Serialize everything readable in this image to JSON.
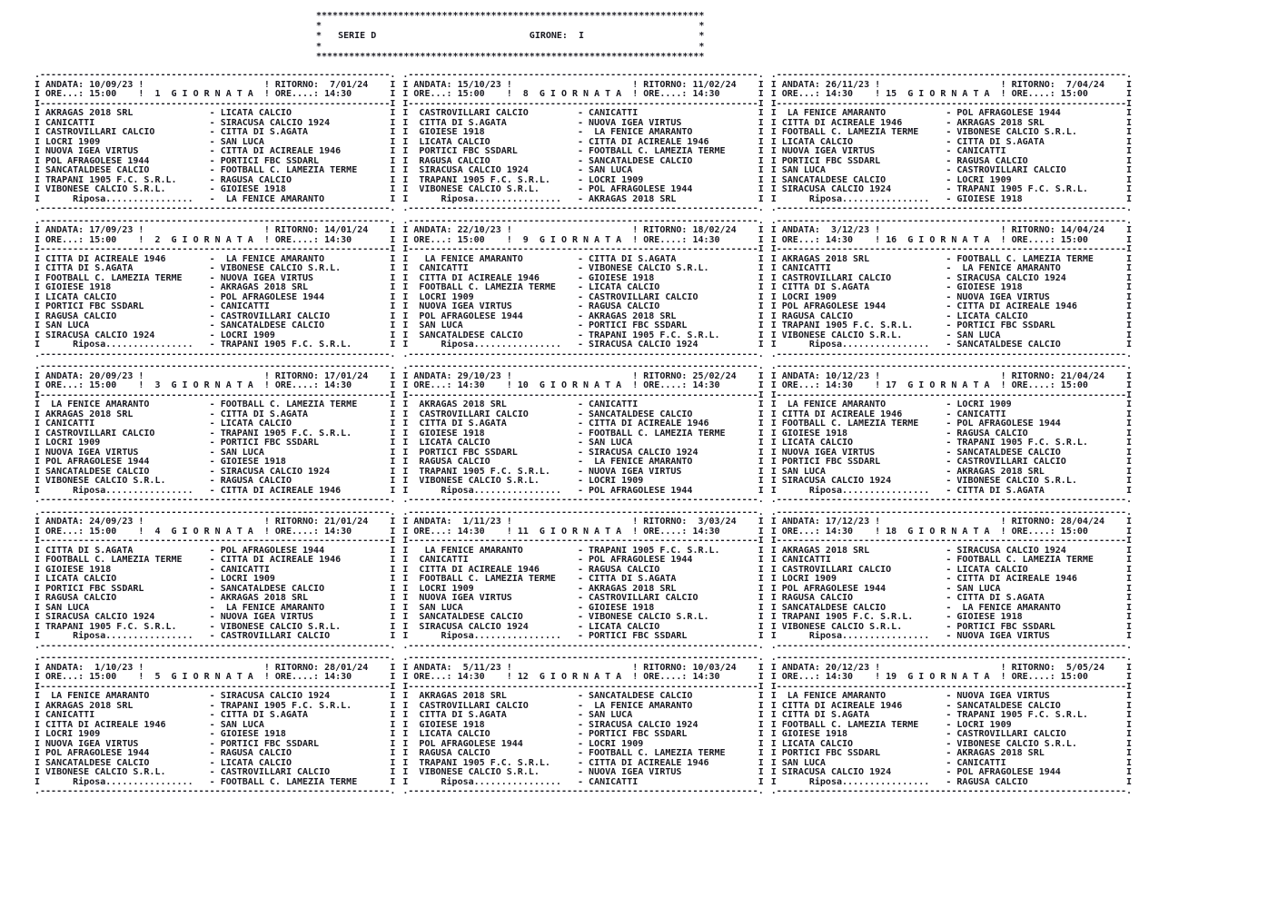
{
  "header": {
    "title": "SERIE D",
    "girone_label": "GIRONE:",
    "girone_value": "I"
  },
  "labels": {
    "andata": "ANDATA:",
    "ore_andata": "ORE...:",
    "ritorno": "RITORNO:",
    "ore_ritorno": "ORE....:",
    "giornata": "G I O R N A T A",
    "riposa": "Riposa"
  },
  "giornate": [
    {
      "number": "1",
      "andata": {
        "date": "10/09/23",
        "ore": "15:00"
      },
      "ritorno": {
        "date": "7/01/24",
        "ore": "14:30"
      },
      "matches": [
        [
          "AKRAGAS 2018 SRL",
          "LICATA CALCIO"
        ],
        [
          "CANICATTI",
          "SIRACUSA CALCIO 1924"
        ],
        [
          "CASTROVILLARI CALCIO",
          "CITTA DI S.AGATA"
        ],
        [
          "LOCRI 1909",
          "SAN LUCA"
        ],
        [
          "NUOVA IGEA VIRTUS",
          "CITTA DI ACIREALE 1946"
        ],
        [
          "POL AFRAGOLESE 1944",
          "PORTICI FBC SSDARL"
        ],
        [
          "SANCATALDESE CALCIO",
          "FOOTBALL C. LAMEZIA TERME"
        ],
        [
          "TRAPANI 1905 F.C. S.R.L.",
          "RAGUSA CALCIO"
        ],
        [
          "VIBONESE CALCIO S.R.L.",
          "GIOIESE 1918"
        ]
      ],
      "riposa": " LA FENICE AMARANTO"
    },
    {
      "number": "2",
      "andata": {
        "date": "17/09/23",
        "ore": "15:00"
      },
      "ritorno": {
        "date": "14/01/24",
        "ore": "14:30"
      },
      "matches": [
        [
          "CITTA DI ACIREALE 1946",
          " LA FENICE AMARANTO"
        ],
        [
          "CITTA DI S.AGATA",
          "VIBONESE CALCIO S.R.L."
        ],
        [
          "FOOTBALL C. LAMEZIA TERME",
          "NUOVA IGEA VIRTUS"
        ],
        [
          "GIOIESE 1918",
          "AKRAGAS 2018 SRL"
        ],
        [
          "LICATA CALCIO",
          "POL AFRAGOLESE 1944"
        ],
        [
          "PORTICI FBC SSDARL",
          "CANICATTI"
        ],
        [
          "RAGUSA CALCIO",
          "CASTROVILLARI CALCIO"
        ],
        [
          "SAN LUCA",
          "SANCATALDESE CALCIO"
        ],
        [
          "SIRACUSA CALCIO 1924",
          "LOCRI 1909"
        ]
      ],
      "riposa": "TRAPANI 1905 F.C. S.R.L."
    },
    {
      "number": "3",
      "andata": {
        "date": "20/09/23",
        "ore": "15:00"
      },
      "ritorno": {
        "date": "17/01/24",
        "ore": "14:30"
      },
      "matches": [
        [
          " LA FENICE AMARANTO",
          "FOOTBALL C. LAMEZIA TERME"
        ],
        [
          "AKRAGAS 2018 SRL",
          "CITTA DI S.AGATA"
        ],
        [
          "CANICATTI",
          "LICATA CALCIO"
        ],
        [
          "CASTROVILLARI CALCIO",
          "TRAPANI 1905 F.C. S.R.L."
        ],
        [
          "LOCRI 1909",
          "PORTICI FBC SSDARL"
        ],
        [
          "NUOVA IGEA VIRTUS",
          "SAN LUCA"
        ],
        [
          "POL AFRAGOLESE 1944",
          "GIOIESE 1918"
        ],
        [
          "SANCATALDESE CALCIO",
          "SIRACUSA CALCIO 1924"
        ],
        [
          "VIBONESE CALCIO S.R.L.",
          "RAGUSA CALCIO"
        ]
      ],
      "riposa": "CITTA DI ACIREALE 1946"
    },
    {
      "number": "4",
      "andata": {
        "date": "24/09/23",
        "ore": "15:00"
      },
      "ritorno": {
        "date": "21/01/24",
        "ore": "14:30"
      },
      "matches": [
        [
          "CITTA DI S.AGATA",
          "POL AFRAGOLESE 1944"
        ],
        [
          "FOOTBALL C. LAMEZIA TERME",
          "CITTA DI ACIREALE 1946"
        ],
        [
          "GIOIESE 1918",
          "CANICATTI"
        ],
        [
          "LICATA CALCIO",
          "LOCRI 1909"
        ],
        [
          "PORTICI FBC SSDARL",
          "SANCATALDESE CALCIO"
        ],
        [
          "RAGUSA CALCIO",
          "AKRAGAS 2018 SRL"
        ],
        [
          "SAN LUCA",
          " LA FENICE AMARANTO"
        ],
        [
          "SIRACUSA CALCIO 1924",
          "NUOVA IGEA VIRTUS"
        ],
        [
          "TRAPANI 1905 F.C. S.R.L.",
          "VIBONESE CALCIO S.R.L."
        ]
      ],
      "riposa": "CASTROVILLARI CALCIO"
    },
    {
      "number": "5",
      "andata": {
        "date": "1/10/23",
        "ore": "15:00"
      },
      "ritorno": {
        "date": "28/01/24",
        "ore": "14:30"
      },
      "matches": [
        [
          " LA FENICE AMARANTO",
          "SIRACUSA CALCIO 1924"
        ],
        [
          "AKRAGAS 2018 SRL",
          "TRAPANI 1905 F.C. S.R.L."
        ],
        [
          "CANICATTI",
          "CITTA DI S.AGATA"
        ],
        [
          "CITTA DI ACIREALE 1946",
          "SAN LUCA"
        ],
        [
          "LOCRI 1909",
          "GIOIESE 1918"
        ],
        [
          "NUOVA IGEA VIRTUS",
          "PORTICI FBC SSDARL"
        ],
        [
          "POL AFRAGOLESE 1944",
          "RAGUSA CALCIO"
        ],
        [
          "SANCATALDESE CALCIO",
          "LICATA CALCIO"
        ],
        [
          "VIBONESE CALCIO S.R.L.",
          "CASTROVILLARI CALCIO"
        ]
      ],
      "riposa": "FOOTBALL C. LAMEZIA TERME"
    },
    {
      "number": "8",
      "andata": {
        "date": "15/10/23",
        "ore": "15:00"
      },
      "ritorno": {
        "date": "11/02/24",
        "ore": "14:30"
      },
      "matches": [
        [
          " CASTROVILLARI CALCIO",
          "CANICATTI"
        ],
        [
          " CITTA DI S.AGATA",
          "NUOVA IGEA VIRTUS"
        ],
        [
          " GIOIESE 1918",
          " LA FENICE AMARANTO"
        ],
        [
          " LICATA CALCIO",
          "CITTA DI ACIREALE 1946"
        ],
        [
          " PORTICI FBC SSDARL",
          "FOOTBALL C. LAMEZIA TERME"
        ],
        [
          " RAGUSA CALCIO",
          "SANCATALDESE CALCIO"
        ],
        [
          " SIRACUSA CALCIO 1924",
          "SAN LUCA"
        ],
        [
          " TRAPANI 1905 F.C. S.R.L.",
          "LOCRI 1909"
        ],
        [
          " VIBONESE CALCIO S.R.L.",
          "POL AFRAGOLESE 1944"
        ]
      ],
      "riposa": "AKRAGAS 2018 SRL"
    },
    {
      "number": "9",
      "andata": {
        "date": "22/10/23",
        "ore": "15:00"
      },
      "ritorno": {
        "date": "18/02/24",
        "ore": "14:30"
      },
      "matches": [
        [
          "  LA FENICE AMARANTO",
          "CITTA DI S.AGATA"
        ],
        [
          " CANICATTI",
          "VIBONESE CALCIO S.R.L."
        ],
        [
          " CITTA DI ACIREALE 1946",
          "GIOIESE 1918"
        ],
        [
          " FOOTBALL C. LAMEZIA TERME",
          "LICATA CALCIO"
        ],
        [
          " LOCRI 1909",
          "CASTROVILLARI CALCIO"
        ],
        [
          " NUOVA IGEA VIRTUS",
          "RAGUSA CALCIO"
        ],
        [
          " POL AFRAGOLESE 1944",
          "AKRAGAS 2018 SRL"
        ],
        [
          " SAN LUCA",
          "PORTICI FBC SSDARL"
        ],
        [
          " SANCATALDESE CALCIO",
          "TRAPANI 1905 F.C. S.R.L."
        ]
      ],
      "riposa": "SIRACUSA CALCIO 1924"
    },
    {
      "number": "10",
      "andata": {
        "date": "29/10/23",
        "ore": "14:30"
      },
      "ritorno": {
        "date": "25/02/24",
        "ore": "14:30"
      },
      "matches": [
        [
          " AKRAGAS 2018 SRL",
          "CANICATTI"
        ],
        [
          " CASTROVILLARI CALCIO",
          "SANCATALDESE CALCIO"
        ],
        [
          " CITTA DI S.AGATA",
          "CITTA DI ACIREALE 1946"
        ],
        [
          " GIOIESE 1918",
          "FOOTBALL C. LAMEZIA TERME"
        ],
        [
          " LICATA CALCIO",
          "SAN LUCA"
        ],
        [
          " PORTICI FBC SSDARL",
          "SIRACUSA CALCIO 1924"
        ],
        [
          " RAGUSA CALCIO",
          " LA FENICE AMARANTO"
        ],
        [
          " TRAPANI 1905 F.C. S.R.L.",
          "NUOVA IGEA VIRTUS"
        ],
        [
          " VIBONESE CALCIO S.R.L.",
          "LOCRI 1909"
        ]
      ],
      "riposa": "POL AFRAGOLESE 1944"
    },
    {
      "number": "11",
      "andata": {
        "date": "1/11/23",
        "ore": "14:30"
      },
      "ritorno": {
        "date": "3/03/24",
        "ore": "14:30"
      },
      "matches": [
        [
          "  LA FENICE AMARANTO",
          "TRAPANI 1905 F.C. S.R.L."
        ],
        [
          " CANICATTI",
          "POL AFRAGOLESE 1944"
        ],
        [
          " CITTA DI ACIREALE 1946",
          "RAGUSA CALCIO"
        ],
        [
          " FOOTBALL C. LAMEZIA TERME",
          "CITTA DI S.AGATA"
        ],
        [
          " LOCRI 1909",
          "AKRAGAS 2018 SRL"
        ],
        [
          " NUOVA IGEA VIRTUS",
          "CASTROVILLARI CALCIO"
        ],
        [
          " SAN LUCA",
          "GIOIESE 1918"
        ],
        [
          " SANCATALDESE CALCIO",
          "VIBONESE CALCIO S.R.L."
        ],
        [
          " SIRACUSA CALCIO 1924",
          "LICATA CALCIO"
        ]
      ],
      "riposa": "PORTICI FBC SSDARL"
    },
    {
      "number": "12",
      "andata": {
        "date": "5/11/23",
        "ore": "14:30"
      },
      "ritorno": {
        "date": "10/03/24",
        "ore": "14:30"
      },
      "matches": [
        [
          " AKRAGAS 2018 SRL",
          "SANCATALDESE CALCIO"
        ],
        [
          " CASTROVILLARI CALCIO",
          " LA FENICE AMARANTO"
        ],
        [
          " CITTA DI S.AGATA",
          "SAN LUCA"
        ],
        [
          " GIOIESE 1918",
          "SIRACUSA CALCIO 1924"
        ],
        [
          " LICATA CALCIO",
          "PORTICI FBC SSDARL"
        ],
        [
          " POL AFRAGOLESE 1944",
          "LOCRI 1909"
        ],
        [
          " RAGUSA CALCIO",
          "FOOTBALL C. LAMEZIA TERME"
        ],
        [
          " TRAPANI 1905 F.C. S.R.L.",
          "CITTA DI ACIREALE 1946"
        ],
        [
          " VIBONESE CALCIO S.R.L.",
          "NUOVA IGEA VIRTUS"
        ]
      ],
      "riposa": "CANICATTI"
    },
    {
      "number": "15",
      "andata": {
        "date": "26/11/23",
        "ore": "14:30"
      },
      "ritorno": {
        "date": "7/04/24",
        "ore": "15:00"
      },
      "matches": [
        [
          " LA FENICE AMARANTO",
          "POL AFRAGOLESE 1944"
        ],
        [
          "CITTA DI ACIREALE 1946",
          "AKRAGAS 2018 SRL"
        ],
        [
          "FOOTBALL C. LAMEZIA TERME",
          "VIBONESE CALCIO S.R.L."
        ],
        [
          "LICATA CALCIO",
          "CITTA DI S.AGATA"
        ],
        [
          "NUOVA IGEA VIRTUS",
          "CANICATTI"
        ],
        [
          "PORTICI FBC SSDARL",
          "RAGUSA CALCIO"
        ],
        [
          "SAN LUCA",
          "CASTROVILLARI CALCIO"
        ],
        [
          "SANCATALDESE CALCIO",
          "LOCRI 1909"
        ],
        [
          "SIRACUSA CALCIO 1924",
          "TRAPANI 1905 F.C. S.R.L."
        ]
      ],
      "riposa": "GIOIESE 1918"
    },
    {
      "number": "16",
      "andata": {
        "date": "3/12/23",
        "ore": "14:30"
      },
      "ritorno": {
        "date": "14/04/24",
        "ore": "15:00"
      },
      "matches": [
        [
          "AKRAGAS 2018 SRL",
          "FOOTBALL C. LAMEZIA TERME"
        ],
        [
          "CANICATTI",
          " LA FENICE AMARANTO"
        ],
        [
          "CASTROVILLARI CALCIO",
          "SIRACUSA CALCIO 1924"
        ],
        [
          "CITTA DI S.AGATA",
          "GIOIESE 1918"
        ],
        [
          "LOCRI 1909",
          "NUOVA IGEA VIRTUS"
        ],
        [
          "POL AFRAGOLESE 1944",
          "CITTA DI ACIREALE 1946"
        ],
        [
          "RAGUSA CALCIO",
          "LICATA CALCIO"
        ],
        [
          "TRAPANI 1905 F.C. S.R.L.",
          "PORTICI FBC SSDARL"
        ],
        [
          "VIBONESE CALCIO S.R.L.",
          "SAN LUCA"
        ]
      ],
      "riposa": "SANCATALDESE CALCIO"
    },
    {
      "number": "17",
      "andata": {
        "date": "10/12/23",
        "ore": "14:30"
      },
      "ritorno": {
        "date": "21/04/24",
        "ore": "15:00"
      },
      "matches": [
        [
          " LA FENICE AMARANTO",
          "LOCRI 1909"
        ],
        [
          "CITTA DI ACIREALE 1946",
          "CANICATTI"
        ],
        [
          "FOOTBALL C. LAMEZIA TERME",
          "POL AFRAGOLESE 1944"
        ],
        [
          "GIOIESE 1918",
          "RAGUSA CALCIO"
        ],
        [
          "LICATA CALCIO",
          "TRAPANI 1905 F.C. S.R.L."
        ],
        [
          "NUOVA IGEA VIRTUS",
          "SANCATALDESE CALCIO"
        ],
        [
          "PORTICI FBC SSDARL",
          "CASTROVILLARI CALCIO"
        ],
        [
          "SAN LUCA",
          "AKRAGAS 2018 SRL"
        ],
        [
          "SIRACUSA CALCIO 1924",
          "VIBONESE CALCIO S.R.L."
        ]
      ],
      "riposa": "CITTA DI S.AGATA"
    },
    {
      "number": "18",
      "andata": {
        "date": "17/12/23",
        "ore": "14:30"
      },
      "ritorno": {
        "date": "28/04/24",
        "ore": "15:00"
      },
      "matches": [
        [
          "AKRAGAS 2018 SRL",
          "SIRACUSA CALCIO 1924"
        ],
        [
          "CANICATTI",
          "FOOTBALL C. LAMEZIA TERME"
        ],
        [
          "CASTROVILLARI CALCIO",
          "LICATA CALCIO"
        ],
        [
          "LOCRI 1909",
          "CITTA DI ACIREALE 1946"
        ],
        [
          "POL AFRAGOLESE 1944",
          "SAN LUCA"
        ],
        [
          "RAGUSA CALCIO",
          "CITTA DI S.AGATA"
        ],
        [
          "SANCATALDESE CALCIO",
          " LA FENICE AMARANTO"
        ],
        [
          "TRAPANI 1905 F.C. S.R.L.",
          "GIOIESE 1918"
        ],
        [
          "VIBONESE CALCIO S.R.L.",
          "PORTICI FBC SSDARL"
        ]
      ],
      "riposa": "NUOVA IGEA VIRTUS"
    },
    {
      "number": "19",
      "andata": {
        "date": "20/12/23",
        "ore": "14:30"
      },
      "ritorno": {
        "date": "5/05/24",
        "ore": "15:00"
      },
      "matches": [
        [
          " LA FENICE AMARANTO",
          "NUOVA IGEA VIRTUS"
        ],
        [
          "CITTA DI ACIREALE 1946",
          "SANCATALDESE CALCIO"
        ],
        [
          "CITTA DI S.AGATA",
          "TRAPANI 1905 F.C. S.R.L."
        ],
        [
          "FOOTBALL C. LAMEZIA TERME",
          "LOCRI 1909"
        ],
        [
          "GIOIESE 1918",
          "CASTROVILLARI CALCIO"
        ],
        [
          "LICATA CALCIO",
          "VIBONESE CALCIO S.R.L."
        ],
        [
          "PORTICI FBC SSDARL",
          "AKRAGAS 2018 SRL"
        ],
        [
          "SAN LUCA",
          "CANICATTI"
        ],
        [
          "SIRACUSA CALCIO 1924",
          "POL AFRAGOLESE 1944"
        ]
      ],
      "riposa": "RAGUSA CALCIO"
    }
  ]
}
